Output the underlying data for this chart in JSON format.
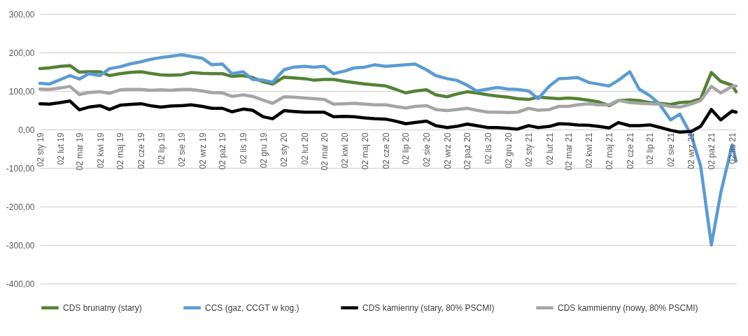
{
  "chart_data": {
    "type": "line",
    "grid": "y",
    "legend": "bottom",
    "x": [
      "2019-01-02",
      "2019-01-16",
      "2019-02-02",
      "2019-02-16",
      "2019-03-02",
      "2019-03-16",
      "2019-04-02",
      "2019-04-16",
      "2019-05-02",
      "2019-05-16",
      "2019-06-02",
      "2019-06-16",
      "2019-07-02",
      "2019-07-16",
      "2019-08-02",
      "2019-08-16",
      "2019-09-02",
      "2019-09-16",
      "2019-10-02",
      "2019-10-16",
      "2019-11-02",
      "2019-11-16",
      "2019-12-02",
      "2019-12-16",
      "2020-01-02",
      "2020-01-16",
      "2020-02-02",
      "2020-02-16",
      "2020-03-02",
      "2020-03-16",
      "2020-04-02",
      "2020-04-16",
      "2020-05-02",
      "2020-05-16",
      "2020-06-02",
      "2020-06-16",
      "2020-07-02",
      "2020-07-16",
      "2020-08-02",
      "2020-08-16",
      "2020-09-02",
      "2020-09-16",
      "2020-10-02",
      "2020-10-16",
      "2020-11-02",
      "2020-11-16",
      "2020-12-02",
      "2020-12-16",
      "2021-01-02",
      "2021-01-16",
      "2021-02-02",
      "2021-02-16",
      "2021-03-02",
      "2021-03-16",
      "2021-04-02",
      "2021-04-16",
      "2021-05-02",
      "2021-05-16",
      "2021-06-02",
      "2021-06-16",
      "2021-07-02",
      "2021-07-16",
      "2021-08-02",
      "2021-08-16",
      "2021-09-02",
      "2021-09-16",
      "2021-10-02",
      "2021-10-16",
      "2021-11-02",
      "2021-11-08"
    ],
    "xlim": [
      "2019-01-02",
      "2021-11-08"
    ],
    "xticks": [
      {
        "value": "2019-01-02",
        "label": "02 sty 19"
      },
      {
        "value": "2019-02-02",
        "label": "02 lut 19"
      },
      {
        "value": "2019-03-02",
        "label": "02 mar 19"
      },
      {
        "value": "2019-04-02",
        "label": "02 kwi 19"
      },
      {
        "value": "2019-05-02",
        "label": "02 maj 19"
      },
      {
        "value": "2019-06-02",
        "label": "02 cze 19"
      },
      {
        "value": "2019-07-02",
        "label": "02 lip 19"
      },
      {
        "value": "2019-08-02",
        "label": "02 sie 19"
      },
      {
        "value": "2019-09-02",
        "label": "02 wrz 19"
      },
      {
        "value": "2019-10-02",
        "label": "02 paź 19"
      },
      {
        "value": "2019-11-02",
        "label": "02 lis 19"
      },
      {
        "value": "2019-12-02",
        "label": "02 gru 19"
      },
      {
        "value": "2020-01-02",
        "label": "02 sty 20"
      },
      {
        "value": "2020-02-02",
        "label": "02 lut 20"
      },
      {
        "value": "2020-03-02",
        "label": "02 mar 20"
      },
      {
        "value": "2020-04-02",
        "label": "02 kwi 20"
      },
      {
        "value": "2020-05-02",
        "label": "02 maj 20"
      },
      {
        "value": "2020-06-02",
        "label": "02 cze 20"
      },
      {
        "value": "2020-07-02",
        "label": "02 lip 20"
      },
      {
        "value": "2020-08-02",
        "label": "02 sie 20"
      },
      {
        "value": "2020-09-02",
        "label": "02 wrz 20"
      },
      {
        "value": "2020-10-02",
        "label": "02 paź 20"
      },
      {
        "value": "2020-11-02",
        "label": "02 lis 20"
      },
      {
        "value": "2020-12-02",
        "label": "02 gru 20"
      },
      {
        "value": "2021-01-02",
        "label": "02 sty 21"
      },
      {
        "value": "2021-02-02",
        "label": "02 lut 21"
      },
      {
        "value": "2021-03-02",
        "label": "02 mar 21"
      },
      {
        "value": "2021-04-02",
        "label": "02 kwi 21"
      },
      {
        "value": "2021-05-02",
        "label": "02 maj 21"
      },
      {
        "value": "2021-06-02",
        "label": "02 cze 21"
      },
      {
        "value": "2021-07-02",
        "label": "02 lip 21"
      },
      {
        "value": "2021-08-02",
        "label": "02 sie 21"
      },
      {
        "value": "2021-09-02",
        "label": "02 wrz 21"
      },
      {
        "value": "2021-10-02",
        "label": "02 paź 21"
      },
      {
        "value": "2021-11-02",
        "label": "02 lis 21"
      }
    ],
    "ylim": [
      -400,
      300
    ],
    "yticks": [
      {
        "value": -400,
        "label": "-400,00"
      },
      {
        "value": -300,
        "label": "-300,00"
      },
      {
        "value": -200,
        "label": "-200,00"
      },
      {
        "value": -100,
        "label": "-100,00"
      },
      {
        "value": 0,
        "label": "0,00"
      },
      {
        "value": 100,
        "label": "100,00"
      },
      {
        "value": 200,
        "label": "200,00"
      },
      {
        "value": 300,
        "label": "300,00"
      }
    ],
    "series": [
      {
        "name": "CDS brunatny (stary)",
        "color": "#548235",
        "values": [
          158,
          160,
          164,
          166,
          149,
          150,
          150,
          140,
          145,
          148,
          150,
          146,
          142,
          141,
          142,
          148,
          146,
          145,
          145,
          138,
          140,
          135,
          124,
          118,
          136,
          134,
          132,
          128,
          130,
          130,
          125,
          122,
          118,
          116,
          113,
          105,
          95,
          100,
          103,
          90,
          85,
          92,
          98,
          95,
          90,
          87,
          84,
          80,
          78,
          84,
          82,
          80,
          82,
          80,
          76,
          72,
          62,
          75,
          77,
          75,
          70,
          68,
          65,
          70,
          72,
          80,
          148,
          125,
          115,
          98
        ]
      },
      {
        "name": "CCS (gaz, CCGT w kog.)",
        "color": "#5b9bd5",
        "values": [
          120,
          118,
          130,
          140,
          131,
          145,
          140,
          158,
          163,
          170,
          176,
          182,
          187,
          190,
          194,
          190,
          185,
          168,
          170,
          145,
          150,
          130,
          128,
          123,
          155,
          162,
          164,
          162,
          164,
          145,
          152,
          160,
          162,
          168,
          164,
          166,
          168,
          170,
          155,
          140,
          132,
          128,
          115,
          100,
          105,
          109,
          105,
          104,
          100,
          80,
          113,
          132,
          133,
          135,
          122,
          118,
          113,
          128,
          150,
          105,
          88,
          67,
          25,
          40,
          -15,
          -95,
          -300,
          -165,
          -40,
          -82
        ]
      },
      {
        "name": "CDS kamienny (stary, 80% PSCMI)",
        "color": "#000000",
        "values": [
          67,
          66,
          70,
          74,
          51,
          58,
          62,
          52,
          63,
          65,
          67,
          62,
          58,
          61,
          62,
          64,
          60,
          55,
          55,
          46,
          53,
          50,
          33,
          28,
          49,
          47,
          45,
          45,
          45,
          33,
          34,
          33,
          30,
          28,
          27,
          22,
          15,
          18,
          22,
          10,
          5,
          8,
          14,
          10,
          5,
          5,
          3,
          1,
          10,
          5,
          8,
          15,
          14,
          12,
          11,
          8,
          4,
          18,
          10,
          10,
          12,
          6,
          -2,
          -7,
          -5,
          8,
          52,
          25,
          48,
          45
        ]
      },
      {
        "name": "CDS kammienny (nowy, 80% PSCMI)",
        "color": "#a5a5a5",
        "values": [
          105,
          104,
          108,
          112,
          91,
          96,
          98,
          94,
          103,
          104,
          104,
          102,
          103,
          102,
          104,
          104,
          100,
          96,
          95,
          86,
          90,
          86,
          76,
          68,
          85,
          84,
          82,
          80,
          78,
          66,
          67,
          68,
          66,
          64,
          64,
          60,
          56,
          60,
          62,
          52,
          49,
          52,
          55,
          50,
          45,
          45,
          44,
          45,
          55,
          50,
          52,
          60,
          60,
          64,
          67,
          64,
          64,
          76,
          70,
          68,
          67,
          66,
          60,
          58,
          66,
          75,
          112,
          95,
          112,
          113
        ]
      }
    ]
  }
}
